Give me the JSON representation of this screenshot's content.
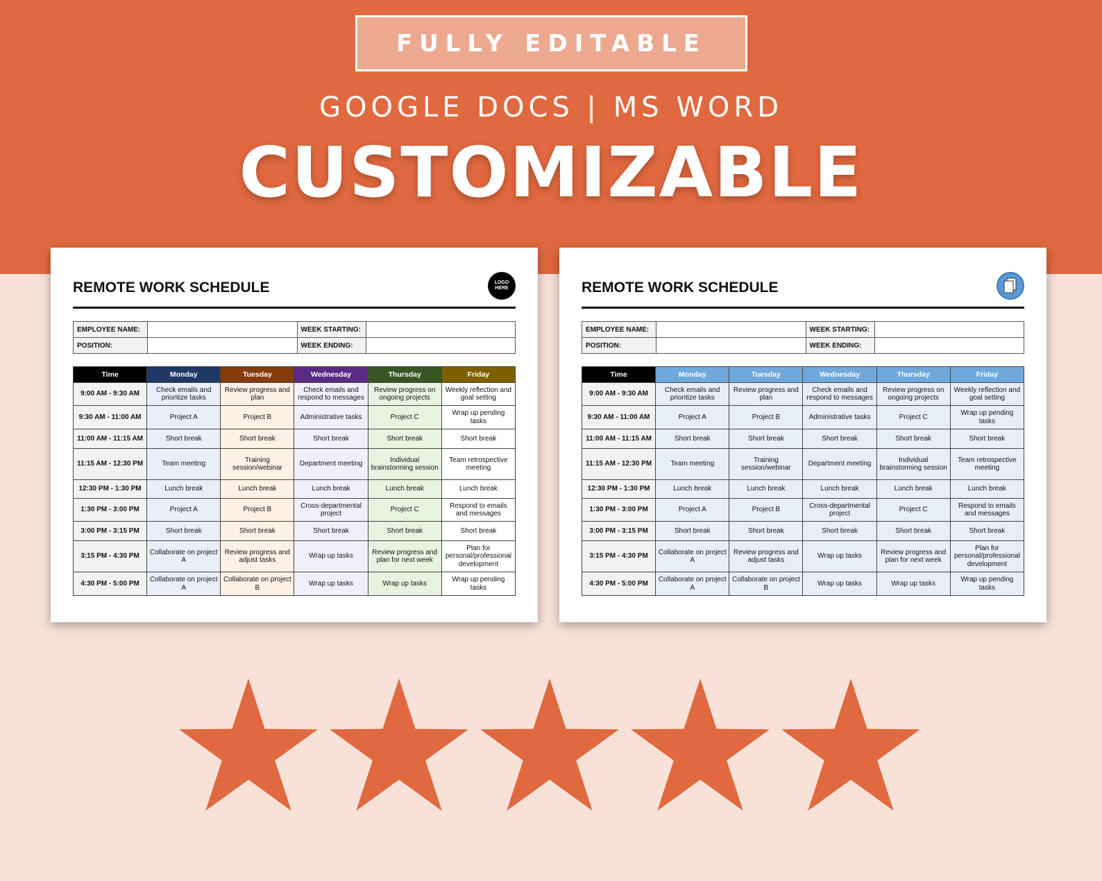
{
  "banner": {
    "badge": "FULLY EDITABLE",
    "subtitle": "GOOGLE DOCS | MS WORD",
    "headline": "CUSTOMIZABLE"
  },
  "colors": {
    "orange": "#e0693f",
    "peach": "#f8e2d8"
  },
  "schedule": {
    "title": "REMOTE WORK SCHEDULE",
    "logo_text": "LOGO HERE",
    "fields": {
      "employee_name": "EMPLOYEE NAME:",
      "position": "POSITION:",
      "week_starting": "WEEK STARTING:",
      "week_ending": "WEEK ENDING:"
    },
    "headers": [
      "Time",
      "Monday",
      "Tuesday",
      "Wednesday",
      "Thursday",
      "Friday"
    ],
    "rows": [
      [
        "9:00 AM - 9:30 AM",
        "Check emails and prioritize tasks",
        "Review progress and plan",
        "Check emails and respond to messages",
        "Review progress on ongoing projects",
        "Weekly reflection and goal setting"
      ],
      [
        "9:30 AM - 11:00 AM",
        "Project A",
        "Project B",
        "Administrative tasks",
        "Project C",
        "Wrap up pending tasks"
      ],
      [
        "11:00 AM - 11:15 AM",
        "Short break",
        "Short break",
        "Short break",
        "Short break",
        "Short break"
      ],
      [
        "11:15 AM - 12:30 PM",
        "Team meeting",
        "Training session/webinar",
        "Department meeting",
        "Individual brainstorming session",
        "Team retrospective meeting"
      ],
      [
        "12:30 PM - 1:30 PM",
        "Lunch break",
        "Lunch break",
        "Lunch break",
        "Lunch break",
        "Lunch break"
      ],
      [
        "1:30 PM - 3:00 PM",
        "Project A",
        "Project B",
        "Cross-departmental project",
        "Project C",
        "Respond to emails and messages"
      ],
      [
        "3:00 PM - 3:15 PM",
        "Short break",
        "Short break",
        "Short break",
        "Short break",
        "Short break"
      ],
      [
        "3:15 PM - 4:30 PM",
        "Collaborate on project A",
        "Review progress and adjust tasks",
        "Wrap up tasks",
        "Review progress and plan for next week",
        "Plan for personal/professional development"
      ],
      [
        "4:30 PM - 5:00 PM",
        "Collaborate on project A",
        "Collaborate on project B",
        "Wrap up tasks",
        "Wrap up tasks",
        "Wrap up pending tasks"
      ]
    ]
  },
  "themes": {
    "multicolor": {
      "header_colors": [
        "#000000",
        "#1f3864",
        "#843c0c",
        "#5a2a84",
        "#385623",
        "#7f6000"
      ],
      "cell_colors": [
        "#f2f2f2",
        "#e9eef8",
        "#fdf0e6",
        "#f3effa",
        "#e7f2e1",
        "#ffffff"
      ]
    },
    "blue": {
      "header_colors": [
        "#000000",
        "#6fa8dc",
        "#6fa8dc",
        "#6fa8dc",
        "#6fa8dc",
        "#6fa8dc"
      ],
      "cell_colors": [
        "#f2f2f2",
        "#e8eef8",
        "#e8eef8",
        "#e8eef8",
        "#e8eef8",
        "#e8eef8"
      ]
    }
  },
  "rating": {
    "stars": 5,
    "max": 5
  }
}
